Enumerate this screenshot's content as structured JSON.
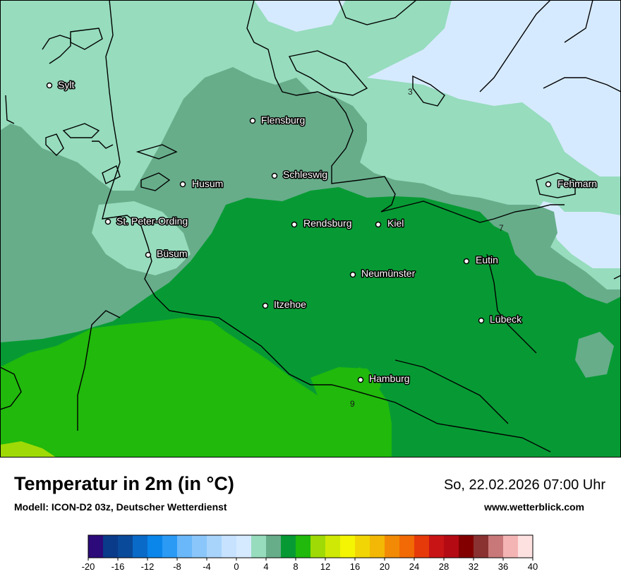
{
  "map": {
    "cities": [
      {
        "name": "Sylt"
      },
      {
        "name": "Flensburg"
      },
      {
        "name": "Husum"
      },
      {
        "name": "Schleswig"
      },
      {
        "name": "Fehmarn"
      },
      {
        "name": "St. Peter-Ording"
      },
      {
        "name": "Rendsburg"
      },
      {
        "name": "Kiel"
      },
      {
        "name": "Büsum"
      },
      {
        "name": "Eutin"
      },
      {
        "name": "Neumünster"
      },
      {
        "name": "Itzehoe"
      },
      {
        "name": "Lübeck"
      },
      {
        "name": "Hamburg"
      }
    ],
    "isolines": [
      {
        "value": "3"
      },
      {
        "value": "7"
      },
      {
        "value": "9"
      }
    ],
    "colors": {
      "c0_2": "#d6eaff",
      "c2_4": "#96dcbd",
      "c4_6": "#67ad8a",
      "c6_8": "#079a34",
      "c8_10": "#20b90c",
      "c10_12": "#9fda06"
    }
  },
  "footer": {
    "title": "Temperatur in 2m (in °C)",
    "model": "Modell: ICON-D2 03z, Deutscher Wetterdienst",
    "datetime": "So, 22.02.2026 07:00 Uhr",
    "website": "www.wetterblick.com"
  },
  "legend": {
    "ticks": [
      "-20",
      "-16",
      "-12",
      "-8",
      "-4",
      "0",
      "4",
      "8",
      "12",
      "16",
      "20",
      "24",
      "28",
      "32",
      "36",
      "40"
    ],
    "colors": [
      "#2d0a7a",
      "#0a3a8a",
      "#0a4a9a",
      "#0a6ac8",
      "#0a86ea",
      "#2a9af5",
      "#6ab8fa",
      "#8ac6fa",
      "#a8d4fc",
      "#c6e2fe",
      "#d6eaff",
      "#96dcbd",
      "#67ad8a",
      "#079a34",
      "#20b90c",
      "#9fda06",
      "#cfe805",
      "#f3f503",
      "#f2d505",
      "#f2b805",
      "#f28a05",
      "#f26a05",
      "#e63a0a",
      "#c81414",
      "#b40a14",
      "#820000",
      "#8a3232",
      "#c87878",
      "#f5b4b4",
      "#fde0e0"
    ]
  }
}
